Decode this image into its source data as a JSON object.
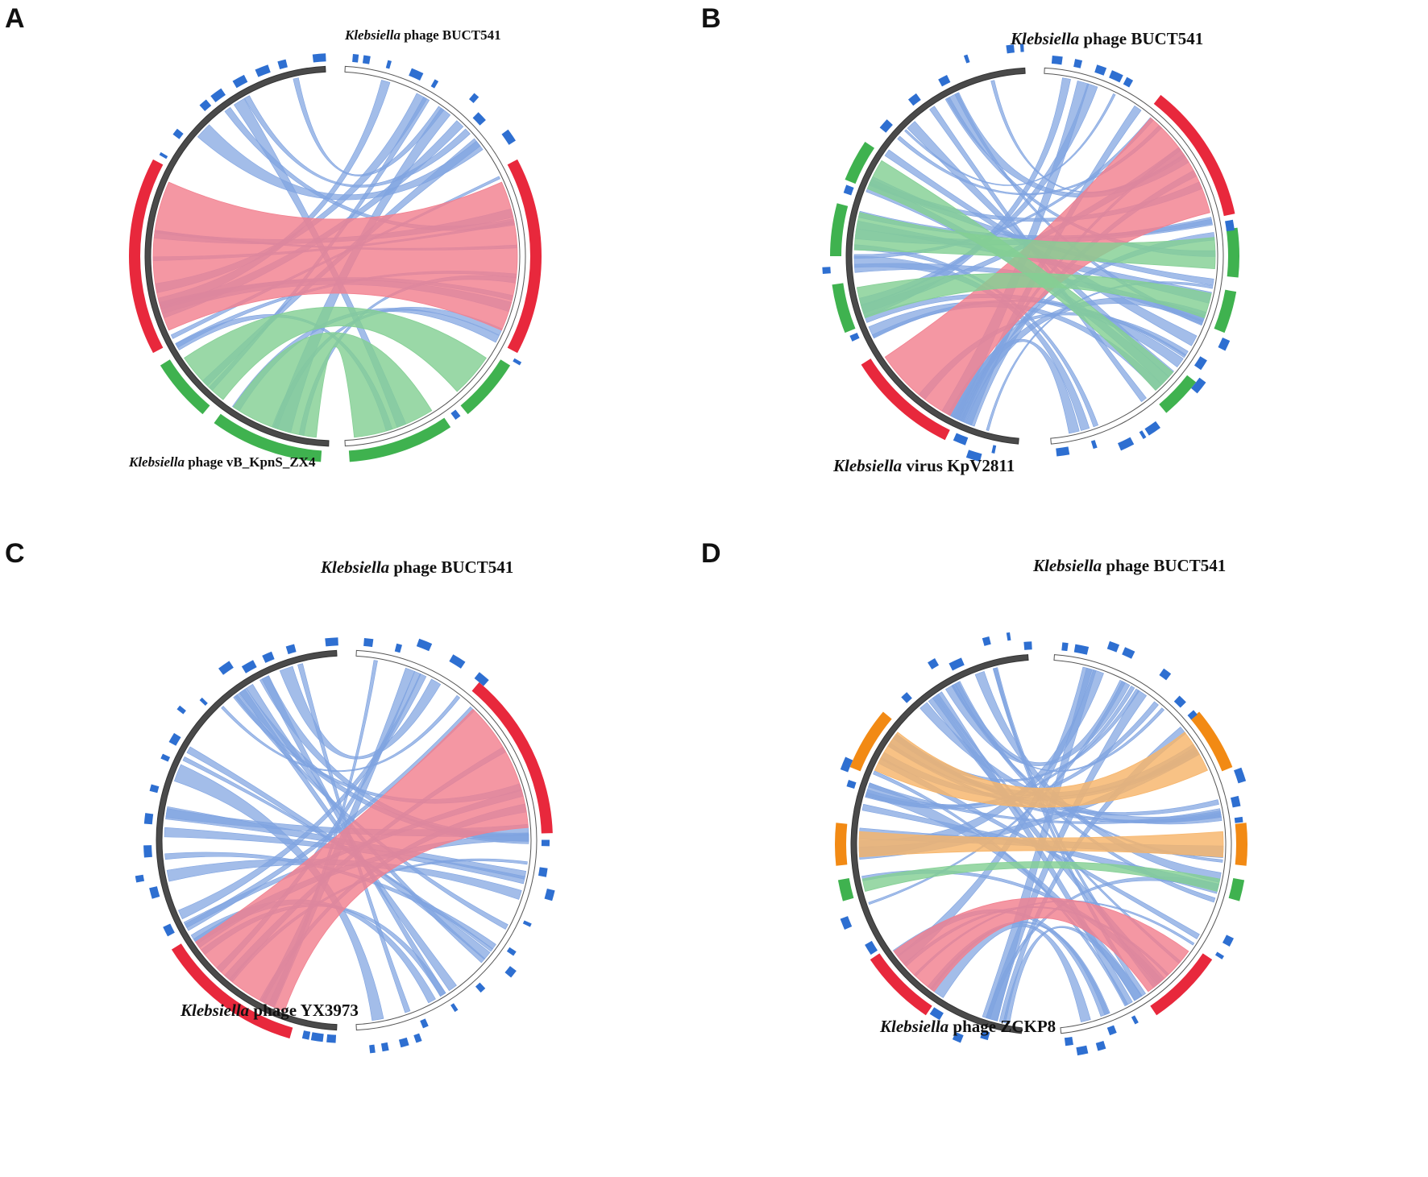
{
  "figure": {
    "panels": [
      {
        "label": "A",
        "top_genome": {
          "genus": "Klebsiella",
          "rest": " phage BUCT541"
        },
        "bottom_genome": {
          "genus": "Klebsiella",
          "rest": " phage vB_KpnS_ZX4"
        }
      },
      {
        "label": "B",
        "top_genome": {
          "genus": "Klebsiella",
          "rest": " phage BUCT541"
        },
        "bottom_genome": {
          "genus": "Klebsiella",
          "rest": " virus KpV2811"
        }
      },
      {
        "label": "C",
        "top_genome": {
          "genus": "Klebsiella",
          "rest": " phage BUCT541"
        },
        "bottom_genome": {
          "genus": "Klebsiella",
          "rest": " phage YX3973"
        }
      },
      {
        "label": "D",
        "top_genome": {
          "genus": "Klebsiella",
          "rest": " phage BUCT541"
        },
        "bottom_genome": {
          "genus": "Klebsiella",
          "rest": " phage ZCKP8"
        }
      }
    ]
  },
  "colors": {
    "link_blue": "#7fa3e0",
    "link_red": "#f2808f",
    "link_green": "#84cf94",
    "link_orange": "#f7b56a",
    "seg_red": "#e8283c",
    "seg_green": "#3fb24f",
    "seg_orange": "#f28a14",
    "gene_blue": "#2e6fd1",
    "ring_dark": "#4a4a4a",
    "ring_light": "#ffffff"
  }
}
